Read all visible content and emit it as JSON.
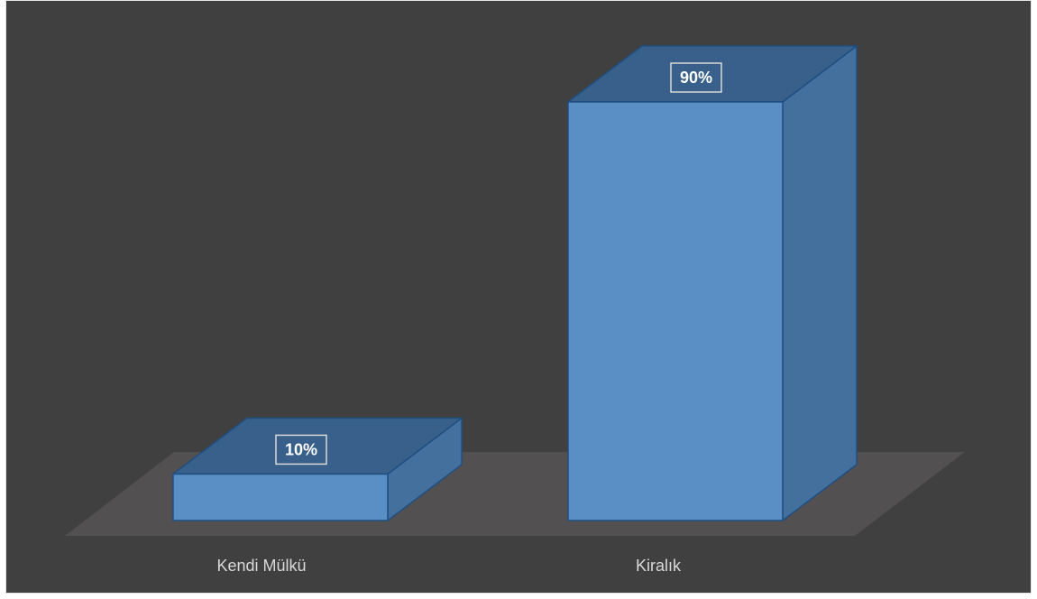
{
  "chart_data": {
    "type": "bar",
    "style": "3d-column",
    "categories": [
      "Kendi Mülkü",
      "Kiralık"
    ],
    "values": [
      10,
      90
    ],
    "data_labels": [
      "10%",
      "90%"
    ],
    "ylim": [
      0,
      100
    ],
    "title": "",
    "xlabel": "",
    "ylabel": "",
    "grid": false,
    "legend": "none",
    "colors": {
      "background": "#404040",
      "floor": "#525051",
      "bar_front": "#5a8fc5",
      "bar_top": "#38608a",
      "bar_side": "#44709e",
      "bar_edge": "#1f4f82",
      "label_text": "#d9d9d9",
      "data_label_border": "#d9d9d9"
    }
  }
}
